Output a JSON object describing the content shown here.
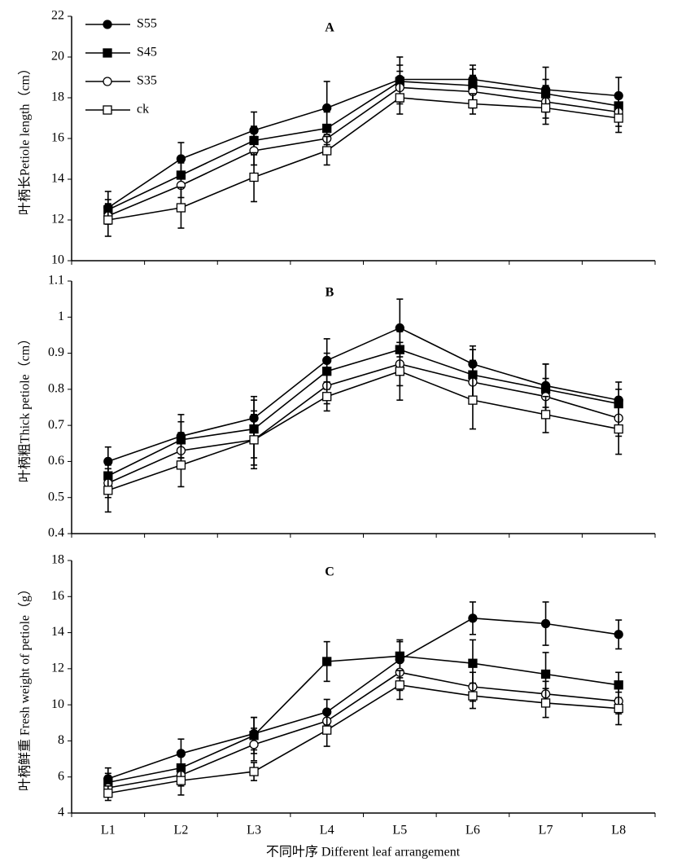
{
  "chart_data": [
    {
      "type": "line",
      "title": "A",
      "y_label": "叶柄长Petiole length（cm）",
      "ylim": [
        10,
        22
      ],
      "yticks": [
        10,
        12,
        14,
        16,
        18,
        20,
        22
      ],
      "series": [
        {
          "name": "S55",
          "color": "#000000",
          "marker": "filled-circle",
          "values": [
            12.6,
            15.0,
            16.4,
            17.5,
            18.9,
            18.9,
            18.4,
            18.1
          ],
          "errors": [
            0.8,
            0.8,
            0.9,
            1.3,
            1.1,
            0.7,
            1.1,
            0.9
          ]
        },
        {
          "name": "S45",
          "color": "#000000",
          "marker": "filled-square",
          "values": [
            12.5,
            14.2,
            15.9,
            16.5,
            18.8,
            18.6,
            18.2,
            17.6
          ],
          "errors": [
            0.5,
            0.6,
            0.7,
            0.8,
            0.8,
            0.8,
            0.7,
            0.6
          ]
        },
        {
          "name": "S35",
          "color": "#000000",
          "marker": "open-circle",
          "values": [
            12.2,
            13.7,
            15.4,
            16.0,
            18.5,
            18.3,
            17.8,
            17.3
          ],
          "errors": [
            0.4,
            0.6,
            0.7,
            0.6,
            0.8,
            0.8,
            0.8,
            0.7
          ]
        },
        {
          "name": "ck",
          "color": "#000000",
          "marker": "open-square",
          "values": [
            12.0,
            12.6,
            14.1,
            15.4,
            18.0,
            17.7,
            17.5,
            17.0
          ],
          "errors": [
            0.8,
            1.0,
            1.2,
            0.7,
            0.8,
            0.5,
            0.8,
            0.7
          ]
        }
      ],
      "legend": "upper-left"
    },
    {
      "type": "line",
      "title": "B",
      "y_label": "叶柄粗Thick petiole（cm）",
      "ylim": [
        0.4,
        1.1
      ],
      "yticks": [
        0.4,
        0.5,
        0.6,
        0.7,
        0.8,
        0.9,
        1,
        1.1
      ],
      "series": [
        {
          "color": "#000000",
          "marker": "filled-circle",
          "values": [
            0.6,
            0.67,
            0.72,
            0.88,
            0.97,
            0.87,
            0.81,
            0.77
          ],
          "errors": [
            0.04,
            0.06,
            0.06,
            0.06,
            0.08,
            0.05,
            0.06,
            0.05
          ]
        },
        {
          "color": "#000000",
          "marker": "filled-square",
          "values": [
            0.56,
            0.66,
            0.69,
            0.85,
            0.91,
            0.84,
            0.8,
            0.76
          ],
          "errors": [
            0.03,
            0.05,
            0.08,
            0.05,
            0.05,
            0.07,
            0.07,
            0.04
          ]
        },
        {
          "color": "#000000",
          "marker": "open-circle",
          "values": [
            0.54,
            0.63,
            0.66,
            0.81,
            0.87,
            0.82,
            0.78,
            0.72
          ],
          "errors": [
            0.04,
            0.05,
            0.07,
            0.05,
            0.06,
            0.06,
            0.05,
            0.05
          ]
        },
        {
          "color": "#000000",
          "marker": "open-square",
          "values": [
            0.52,
            0.59,
            0.66,
            0.78,
            0.85,
            0.77,
            0.73,
            0.69
          ],
          "errors": [
            0.06,
            0.06,
            0.08,
            0.04,
            0.08,
            0.08,
            0.05,
            0.07
          ]
        }
      ]
    },
    {
      "type": "line",
      "title": "C",
      "y_label": "叶柄鲜重 Fresh weight of petiole（g）",
      "x_label": "不同叶序 Different leaf arrangement",
      "categories": [
        "L1",
        "L2",
        "L3",
        "L4",
        "L5",
        "L6",
        "L7",
        "L8"
      ],
      "ylim": [
        4,
        18
      ],
      "yticks": [
        4,
        6,
        8,
        10,
        12,
        14,
        16,
        18
      ],
      "series": [
        {
          "color": "#000000",
          "marker": "filled-circle",
          "values": [
            5.9,
            7.3,
            8.4,
            9.6,
            12.5,
            14.8,
            14.5,
            13.9
          ],
          "errors": [
            0.6,
            0.8,
            0.9,
            0.7,
            1.0,
            0.9,
            1.2,
            0.8
          ]
        },
        {
          "color": "#000000",
          "marker": "filled-square",
          "values": [
            5.7,
            6.5,
            8.3,
            12.4,
            12.7,
            12.3,
            11.7,
            11.1
          ],
          "errors": [
            0.5,
            0.7,
            1.0,
            1.1,
            0.9,
            1.3,
            1.2,
            0.7
          ]
        },
        {
          "color": "#000000",
          "marker": "open-circle",
          "values": [
            5.4,
            6.1,
            7.8,
            9.1,
            11.8,
            11.0,
            10.6,
            10.2
          ],
          "errors": [
            0.5,
            0.6,
            0.9,
            0.6,
            1.0,
            0.8,
            0.7,
            0.7
          ]
        },
        {
          "color": "#000000",
          "marker": "open-square",
          "values": [
            5.1,
            5.8,
            6.3,
            8.6,
            11.1,
            10.5,
            10.1,
            9.8
          ],
          "errors": [
            0.4,
            0.8,
            0.5,
            0.9,
            0.8,
            0.7,
            0.8,
            0.9
          ]
        }
      ]
    }
  ]
}
